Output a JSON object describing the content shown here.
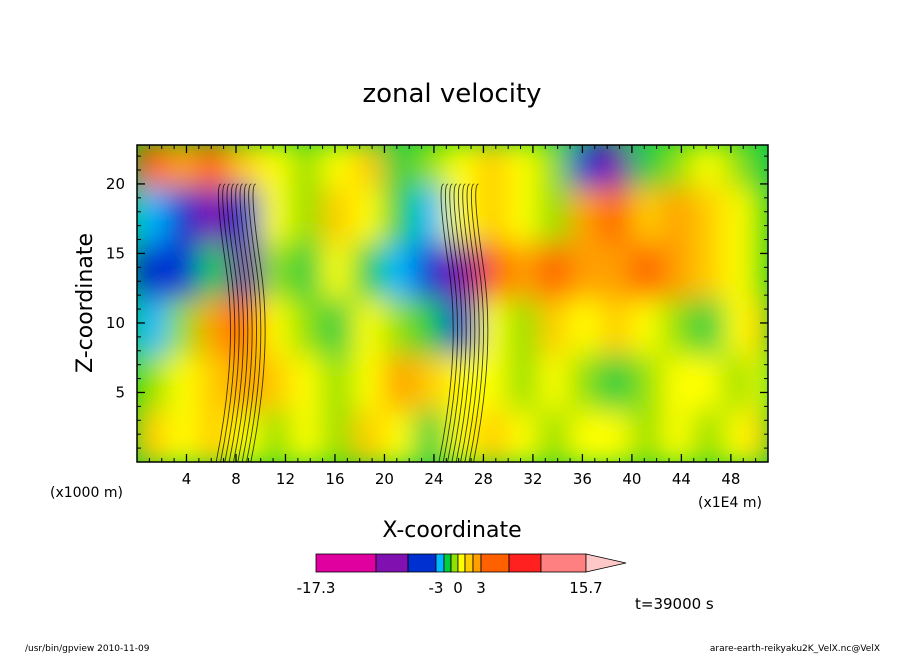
{
  "chart_data": {
    "type": "heatmap",
    "title": "zonal velocity",
    "xlabel": "X-coordinate",
    "ylabel": "Z-coordinate",
    "xunit_left": "(x1000 m)",
    "xunit_right": "(x1E4 m)",
    "xlim": [
      0,
      51
    ],
    "ylim": [
      0,
      22.8
    ],
    "xticks": [
      "4",
      "8",
      "12",
      "16",
      "20",
      "24",
      "28",
      "32",
      "36",
      "40",
      "44",
      "48"
    ],
    "yticks": [
      "5",
      "10",
      "15",
      "20"
    ],
    "time_label": "t=39000 s",
    "colorbar": {
      "labels": [
        "-17.3",
        "-3",
        "0",
        "3",
        "15.7"
      ],
      "colors": [
        "#e000a0",
        "#8010b0",
        "#0030d0",
        "#00b8ff",
        "#00cc40",
        "#90e000",
        "#ffff00",
        "#ffcc00",
        "#ffa000",
        "#ff6000",
        "#ff2020",
        "#ff8080",
        "#ffc8c8"
      ]
    },
    "cells": {
      "x": [
        1.5,
        4,
        6.5,
        9,
        11.5,
        14,
        16.5,
        19,
        21.5,
        24,
        26.5,
        29,
        31.5,
        34,
        36.5,
        39,
        41.5,
        44,
        46.5,
        49,
        51
      ],
      "z": [
        2,
        6,
        10,
        14,
        18,
        22
      ],
      "levels": [
        [
          7,
          6,
          7,
          6,
          5,
          6,
          5,
          7,
          6,
          4,
          6,
          7,
          6,
          5,
          6,
          6,
          5,
          6,
          5,
          6,
          7
        ],
        [
          5,
          6,
          7,
          8,
          7,
          6,
          5,
          6,
          8,
          7,
          6,
          6,
          5,
          6,
          5,
          4,
          5,
          6,
          6,
          5,
          6
        ],
        [
          3,
          5,
          8,
          9,
          6,
          5,
          4,
          6,
          5,
          4,
          2,
          6,
          5,
          7,
          6,
          7,
          6,
          5,
          4,
          6,
          7
        ],
        [
          2,
          2,
          4,
          1,
          5,
          4,
          6,
          4,
          3,
          2,
          1,
          9,
          8,
          9,
          8,
          8,
          9,
          8,
          7,
          6,
          5
        ],
        [
          3,
          2,
          1,
          2,
          6,
          5,
          7,
          6,
          4,
          3,
          6,
          7,
          6,
          5,
          8,
          9,
          7,
          8,
          7,
          6,
          5
        ],
        [
          9,
          8,
          9,
          7,
          6,
          5,
          6,
          7,
          4,
          5,
          6,
          7,
          6,
          5,
          2,
          1,
          4,
          5,
          6,
          5,
          4
        ]
      ]
    }
  },
  "footer": {
    "left": "/usr/bin/gpview   2010-11-09",
    "right": "arare-earth-reikyaku2K_VelX.nc@VelX"
  }
}
